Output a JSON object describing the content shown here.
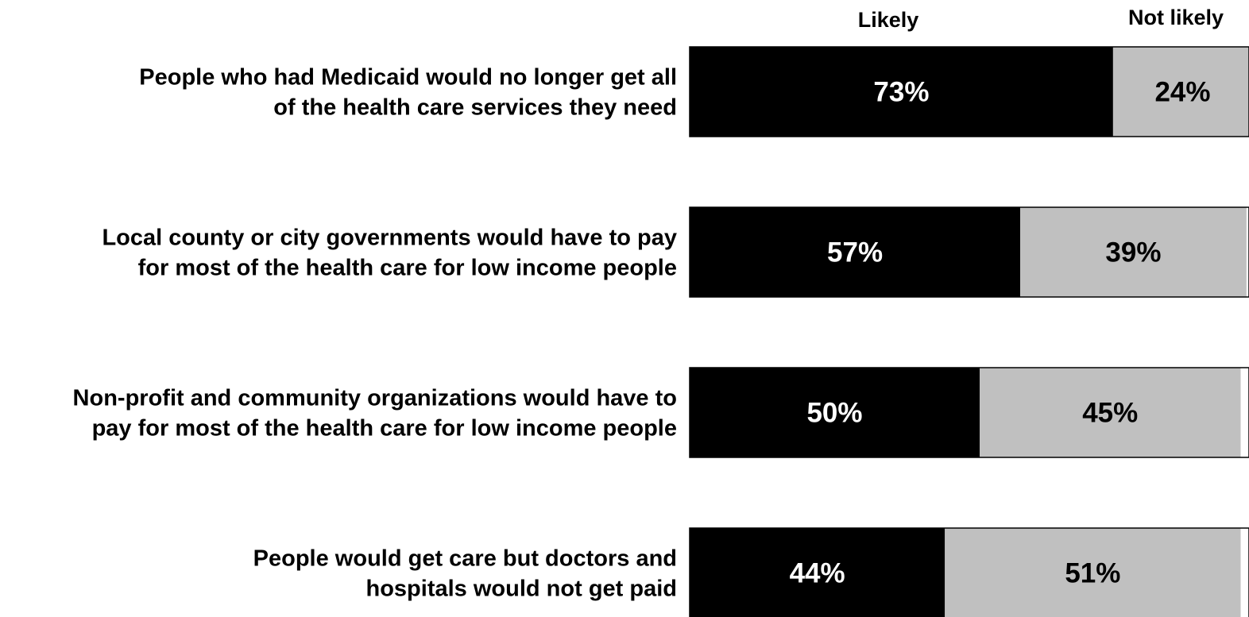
{
  "chart_data": {
    "type": "bar",
    "orientation": "horizontal",
    "stacked": true,
    "categories": [
      [
        "People who had Medicaid would no longer get all",
        "of the health care services they need"
      ],
      [
        "Local county or city governments would have to pay",
        "for most of the health care for low income people"
      ],
      [
        "Non-profit and community organizations would have to",
        "pay for most of the health care for low income people"
      ],
      [
        "People would get care but doctors and",
        "hospitals would not get paid"
      ]
    ],
    "series": [
      {
        "name": "Likely",
        "values": [
          73,
          57,
          50,
          44
        ],
        "labels": [
          "73%",
          "57%",
          "50%",
          "44%"
        ],
        "color": "#000000",
        "label_color": "#ffffff"
      },
      {
        "name": "Not likely",
        "values": [
          24,
          39,
          45,
          51
        ],
        "labels": [
          "24%",
          "39%",
          "45%",
          "51%"
        ],
        "color": "#c0c0c0",
        "label_color": "#000000"
      }
    ],
    "xlim": [
      0,
      94
    ],
    "grid": false,
    "legend": "top"
  }
}
